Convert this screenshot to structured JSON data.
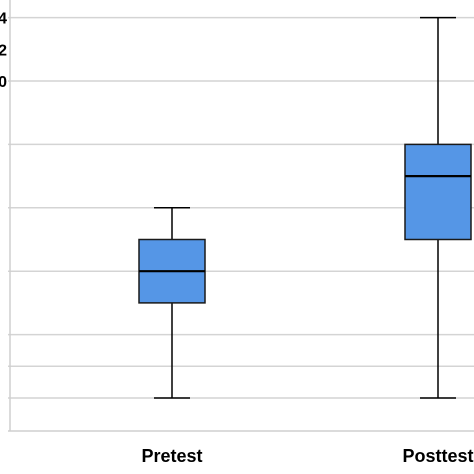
{
  "chart_data": {
    "type": "boxplot",
    "orientation": "vertical",
    "categories": [
      "Pretest",
      "Posttest"
    ],
    "series": [
      {
        "category": "Pretest",
        "whisker_low": 11,
        "q1": 14,
        "median": 15,
        "q3": 16,
        "whisker_high": 17
      },
      {
        "category": "Posttest",
        "whisker_low": 11,
        "q1": 16,
        "median": 18,
        "q3": 19,
        "whisker_high": 23
      }
    ],
    "y_ticks": [
      {
        "value": 23,
        "label": "4"
      },
      {
        "value": 22,
        "label": "2"
      },
      {
        "value": 21,
        "label": "0"
      }
    ],
    "ylim": [
      10,
      24
    ],
    "gridlines": [
      11,
      12,
      13,
      15,
      17,
      19,
      21,
      23
    ],
    "grid": true,
    "box_color": "#5596e6",
    "grid_color": "#d4d4d4",
    "line_color": "#000000"
  }
}
